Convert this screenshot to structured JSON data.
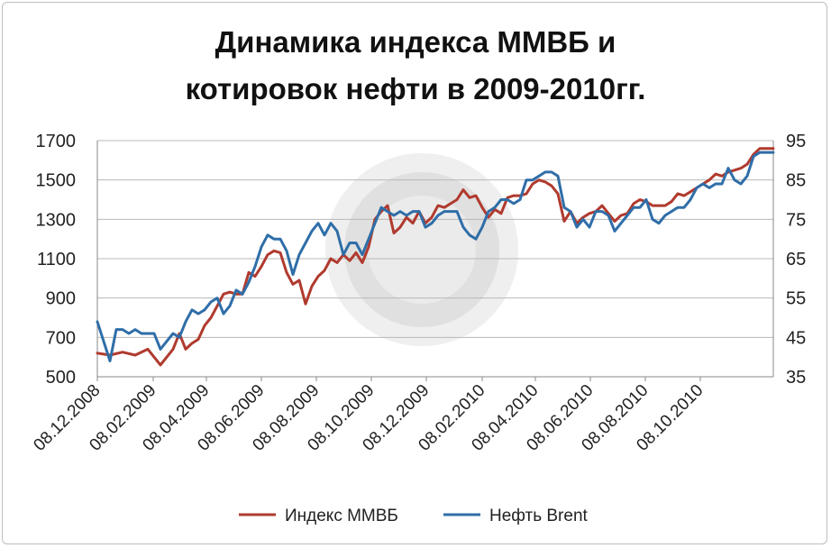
{
  "chart_data": {
    "type": "line",
    "title_lines": [
      "Динамика индекса ММВБ и",
      "котировок нефти в 2009-2010гг."
    ],
    "y_left": {
      "ticks": [
        "1700",
        "1500",
        "1300",
        "1100",
        "900",
        "700",
        "500"
      ],
      "range": [
        500,
        1700
      ]
    },
    "y_right": {
      "ticks": [
        "95",
        "85",
        "75",
        "65",
        "55",
        "45",
        "35"
      ],
      "range": [
        35,
        95
      ]
    },
    "x_ticks": [
      "08.12.2008",
      "08.02.2009",
      "08.04.2009",
      "08.06.2009",
      "08.08.2009",
      "08.10.2009",
      "08.12.2009",
      "08.02.2010",
      "08.04.2010",
      "08.06.2010",
      "08.08.2010",
      "08.10.2010"
    ],
    "x_range": [
      "2008-12-08",
      "2010-12-28"
    ],
    "grid": "horizontal",
    "legend_position": "bottom",
    "series": [
      {
        "name": "Индекс ММВБ",
        "axis": "left",
        "color": "#b03a2e",
        "points": [
          [
            "2008-12-08",
            620
          ],
          [
            "2008-12-22",
            610
          ],
          [
            "2009-01-05",
            625
          ],
          [
            "2009-01-19",
            610
          ],
          [
            "2009-02-02",
            640
          ],
          [
            "2009-02-09",
            600
          ],
          [
            "2009-02-16",
            560
          ],
          [
            "2009-02-23",
            600
          ],
          [
            "2009-03-02",
            640
          ],
          [
            "2009-03-09",
            720
          ],
          [
            "2009-03-16",
            640
          ],
          [
            "2009-03-23",
            670
          ],
          [
            "2009-03-30",
            690
          ],
          [
            "2009-04-06",
            760
          ],
          [
            "2009-04-13",
            800
          ],
          [
            "2009-04-20",
            860
          ],
          [
            "2009-04-27",
            920
          ],
          [
            "2009-05-04",
            930
          ],
          [
            "2009-05-11",
            920
          ],
          [
            "2009-05-18",
            920
          ],
          [
            "2009-05-25",
            1030
          ],
          [
            "2009-06-01",
            1010
          ],
          [
            "2009-06-08",
            1060
          ],
          [
            "2009-06-15",
            1120
          ],
          [
            "2009-06-22",
            1140
          ],
          [
            "2009-06-29",
            1130
          ],
          [
            "2009-07-06",
            1030
          ],
          [
            "2009-07-13",
            970
          ],
          [
            "2009-07-20",
            990
          ],
          [
            "2009-07-27",
            870
          ],
          [
            "2009-08-03",
            960
          ],
          [
            "2009-08-10",
            1010
          ],
          [
            "2009-08-17",
            1040
          ],
          [
            "2009-08-24",
            1100
          ],
          [
            "2009-08-31",
            1080
          ],
          [
            "2009-09-07",
            1120
          ],
          [
            "2009-09-14",
            1090
          ],
          [
            "2009-09-21",
            1130
          ],
          [
            "2009-09-28",
            1080
          ],
          [
            "2009-10-05",
            1160
          ],
          [
            "2009-10-12",
            1300
          ],
          [
            "2009-10-19",
            1340
          ],
          [
            "2009-10-26",
            1370
          ],
          [
            "2009-11-02",
            1230
          ],
          [
            "2009-11-09",
            1260
          ],
          [
            "2009-11-16",
            1310
          ],
          [
            "2009-11-23",
            1280
          ],
          [
            "2009-11-30",
            1340
          ],
          [
            "2009-12-07",
            1280
          ],
          [
            "2009-12-14",
            1310
          ],
          [
            "2009-12-21",
            1370
          ],
          [
            "2009-12-28",
            1360
          ],
          [
            "2010-01-11",
            1400
          ],
          [
            "2010-01-18",
            1450
          ],
          [
            "2010-01-25",
            1410
          ],
          [
            "2010-02-01",
            1420
          ],
          [
            "2010-02-08",
            1360
          ],
          [
            "2010-02-15",
            1310
          ],
          [
            "2010-02-22",
            1350
          ],
          [
            "2010-03-01",
            1330
          ],
          [
            "2010-03-08",
            1410
          ],
          [
            "2010-03-15",
            1420
          ],
          [
            "2010-03-22",
            1420
          ],
          [
            "2010-03-29",
            1430
          ],
          [
            "2010-04-05",
            1480
          ],
          [
            "2010-04-12",
            1500
          ],
          [
            "2010-04-19",
            1490
          ],
          [
            "2010-04-26",
            1470
          ],
          [
            "2010-05-03",
            1430
          ],
          [
            "2010-05-10",
            1290
          ],
          [
            "2010-05-17",
            1340
          ],
          [
            "2010-05-24",
            1280
          ],
          [
            "2010-05-31",
            1310
          ],
          [
            "2010-06-07",
            1330
          ],
          [
            "2010-06-14",
            1340
          ],
          [
            "2010-06-21",
            1370
          ],
          [
            "2010-06-28",
            1330
          ],
          [
            "2010-07-05",
            1290
          ],
          [
            "2010-07-12",
            1320
          ],
          [
            "2010-07-19",
            1330
          ],
          [
            "2010-07-26",
            1380
          ],
          [
            "2010-08-02",
            1400
          ],
          [
            "2010-08-09",
            1390
          ],
          [
            "2010-08-16",
            1370
          ],
          [
            "2010-08-23",
            1370
          ],
          [
            "2010-08-30",
            1370
          ],
          [
            "2010-09-06",
            1390
          ],
          [
            "2010-09-13",
            1430
          ],
          [
            "2010-09-20",
            1420
          ],
          [
            "2010-09-27",
            1440
          ],
          [
            "2010-10-04",
            1460
          ],
          [
            "2010-10-11",
            1480
          ],
          [
            "2010-10-18",
            1500
          ],
          [
            "2010-10-25",
            1530
          ],
          [
            "2010-11-01",
            1520
          ],
          [
            "2010-11-08",
            1540
          ],
          [
            "2010-11-15",
            1550
          ],
          [
            "2010-11-22",
            1560
          ],
          [
            "2010-11-29",
            1580
          ],
          [
            "2010-12-06",
            1630
          ],
          [
            "2010-12-13",
            1660
          ],
          [
            "2010-12-20",
            1660
          ],
          [
            "2010-12-28",
            1660
          ]
        ]
      },
      {
        "name": "Нефть Brent",
        "axis": "right",
        "color": "#2f6ea8",
        "points": [
          [
            "2008-12-08",
            49
          ],
          [
            "2008-12-15",
            44
          ],
          [
            "2008-12-22",
            39
          ],
          [
            "2008-12-29",
            47
          ],
          [
            "2009-01-05",
            47
          ],
          [
            "2009-01-12",
            46
          ],
          [
            "2009-01-19",
            47
          ],
          [
            "2009-01-26",
            46
          ],
          [
            "2009-02-02",
            46
          ],
          [
            "2009-02-09",
            46
          ],
          [
            "2009-02-16",
            42
          ],
          [
            "2009-02-23",
            44
          ],
          [
            "2009-03-02",
            46
          ],
          [
            "2009-03-09",
            45
          ],
          [
            "2009-03-16",
            49
          ],
          [
            "2009-03-23",
            52
          ],
          [
            "2009-03-30",
            51
          ],
          [
            "2009-04-06",
            52
          ],
          [
            "2009-04-13",
            54
          ],
          [
            "2009-04-20",
            55
          ],
          [
            "2009-04-27",
            51
          ],
          [
            "2009-05-04",
            53
          ],
          [
            "2009-05-11",
            57
          ],
          [
            "2009-05-18",
            56
          ],
          [
            "2009-05-25",
            59
          ],
          [
            "2009-06-01",
            63
          ],
          [
            "2009-06-08",
            68
          ],
          [
            "2009-06-15",
            71
          ],
          [
            "2009-06-22",
            70
          ],
          [
            "2009-06-29",
            70
          ],
          [
            "2009-07-06",
            67
          ],
          [
            "2009-07-13",
            61
          ],
          [
            "2009-07-20",
            66
          ],
          [
            "2009-07-27",
            69
          ],
          [
            "2009-08-03",
            72
          ],
          [
            "2009-08-10",
            74
          ],
          [
            "2009-08-17",
            71
          ],
          [
            "2009-08-24",
            74
          ],
          [
            "2009-08-31",
            72
          ],
          [
            "2009-09-07",
            66
          ],
          [
            "2009-09-14",
            69
          ],
          [
            "2009-09-21",
            69
          ],
          [
            "2009-09-28",
            66
          ],
          [
            "2009-10-05",
            70
          ],
          [
            "2009-10-12",
            74
          ],
          [
            "2009-10-19",
            78
          ],
          [
            "2009-10-26",
            77
          ],
          [
            "2009-11-02",
            76
          ],
          [
            "2009-11-09",
            77
          ],
          [
            "2009-11-16",
            76
          ],
          [
            "2009-11-23",
            77
          ],
          [
            "2009-11-30",
            77
          ],
          [
            "2009-12-07",
            73
          ],
          [
            "2009-12-14",
            74
          ],
          [
            "2009-12-21",
            76
          ],
          [
            "2009-12-28",
            77
          ],
          [
            "2010-01-11",
            77
          ],
          [
            "2010-01-18",
            73
          ],
          [
            "2010-01-25",
            71
          ],
          [
            "2010-02-01",
            70
          ],
          [
            "2010-02-08",
            73
          ],
          [
            "2010-02-15",
            77
          ],
          [
            "2010-02-22",
            78
          ],
          [
            "2010-03-01",
            80
          ],
          [
            "2010-03-08",
            80
          ],
          [
            "2010-03-15",
            79
          ],
          [
            "2010-03-22",
            80
          ],
          [
            "2010-03-29",
            85
          ],
          [
            "2010-04-05",
            85
          ],
          [
            "2010-04-12",
            86
          ],
          [
            "2010-04-19",
            87
          ],
          [
            "2010-04-26",
            87
          ],
          [
            "2010-05-03",
            86
          ],
          [
            "2010-05-10",
            78
          ],
          [
            "2010-05-17",
            77
          ],
          [
            "2010-05-24",
            73
          ],
          [
            "2010-05-31",
            75
          ],
          [
            "2010-06-07",
            73
          ],
          [
            "2010-06-14",
            77
          ],
          [
            "2010-06-21",
            77
          ],
          [
            "2010-06-28",
            76
          ],
          [
            "2010-07-05",
            72
          ],
          [
            "2010-07-12",
            74
          ],
          [
            "2010-07-19",
            76
          ],
          [
            "2010-07-26",
            78
          ],
          [
            "2010-08-02",
            78
          ],
          [
            "2010-08-09",
            80
          ],
          [
            "2010-08-16",
            75
          ],
          [
            "2010-08-23",
            74
          ],
          [
            "2010-08-30",
            76
          ],
          [
            "2010-09-06",
            77
          ],
          [
            "2010-09-13",
            78
          ],
          [
            "2010-09-20",
            78
          ],
          [
            "2010-09-27",
            80
          ],
          [
            "2010-10-04",
            83
          ],
          [
            "2010-10-11",
            84
          ],
          [
            "2010-10-18",
            83
          ],
          [
            "2010-10-25",
            84
          ],
          [
            "2010-11-01",
            84
          ],
          [
            "2010-11-08",
            88
          ],
          [
            "2010-11-15",
            85
          ],
          [
            "2010-11-22",
            84
          ],
          [
            "2010-11-29",
            86
          ],
          [
            "2010-12-06",
            91
          ],
          [
            "2010-12-13",
            92
          ],
          [
            "2010-12-20",
            92
          ],
          [
            "2010-12-28",
            92
          ]
        ]
      }
    ]
  }
}
